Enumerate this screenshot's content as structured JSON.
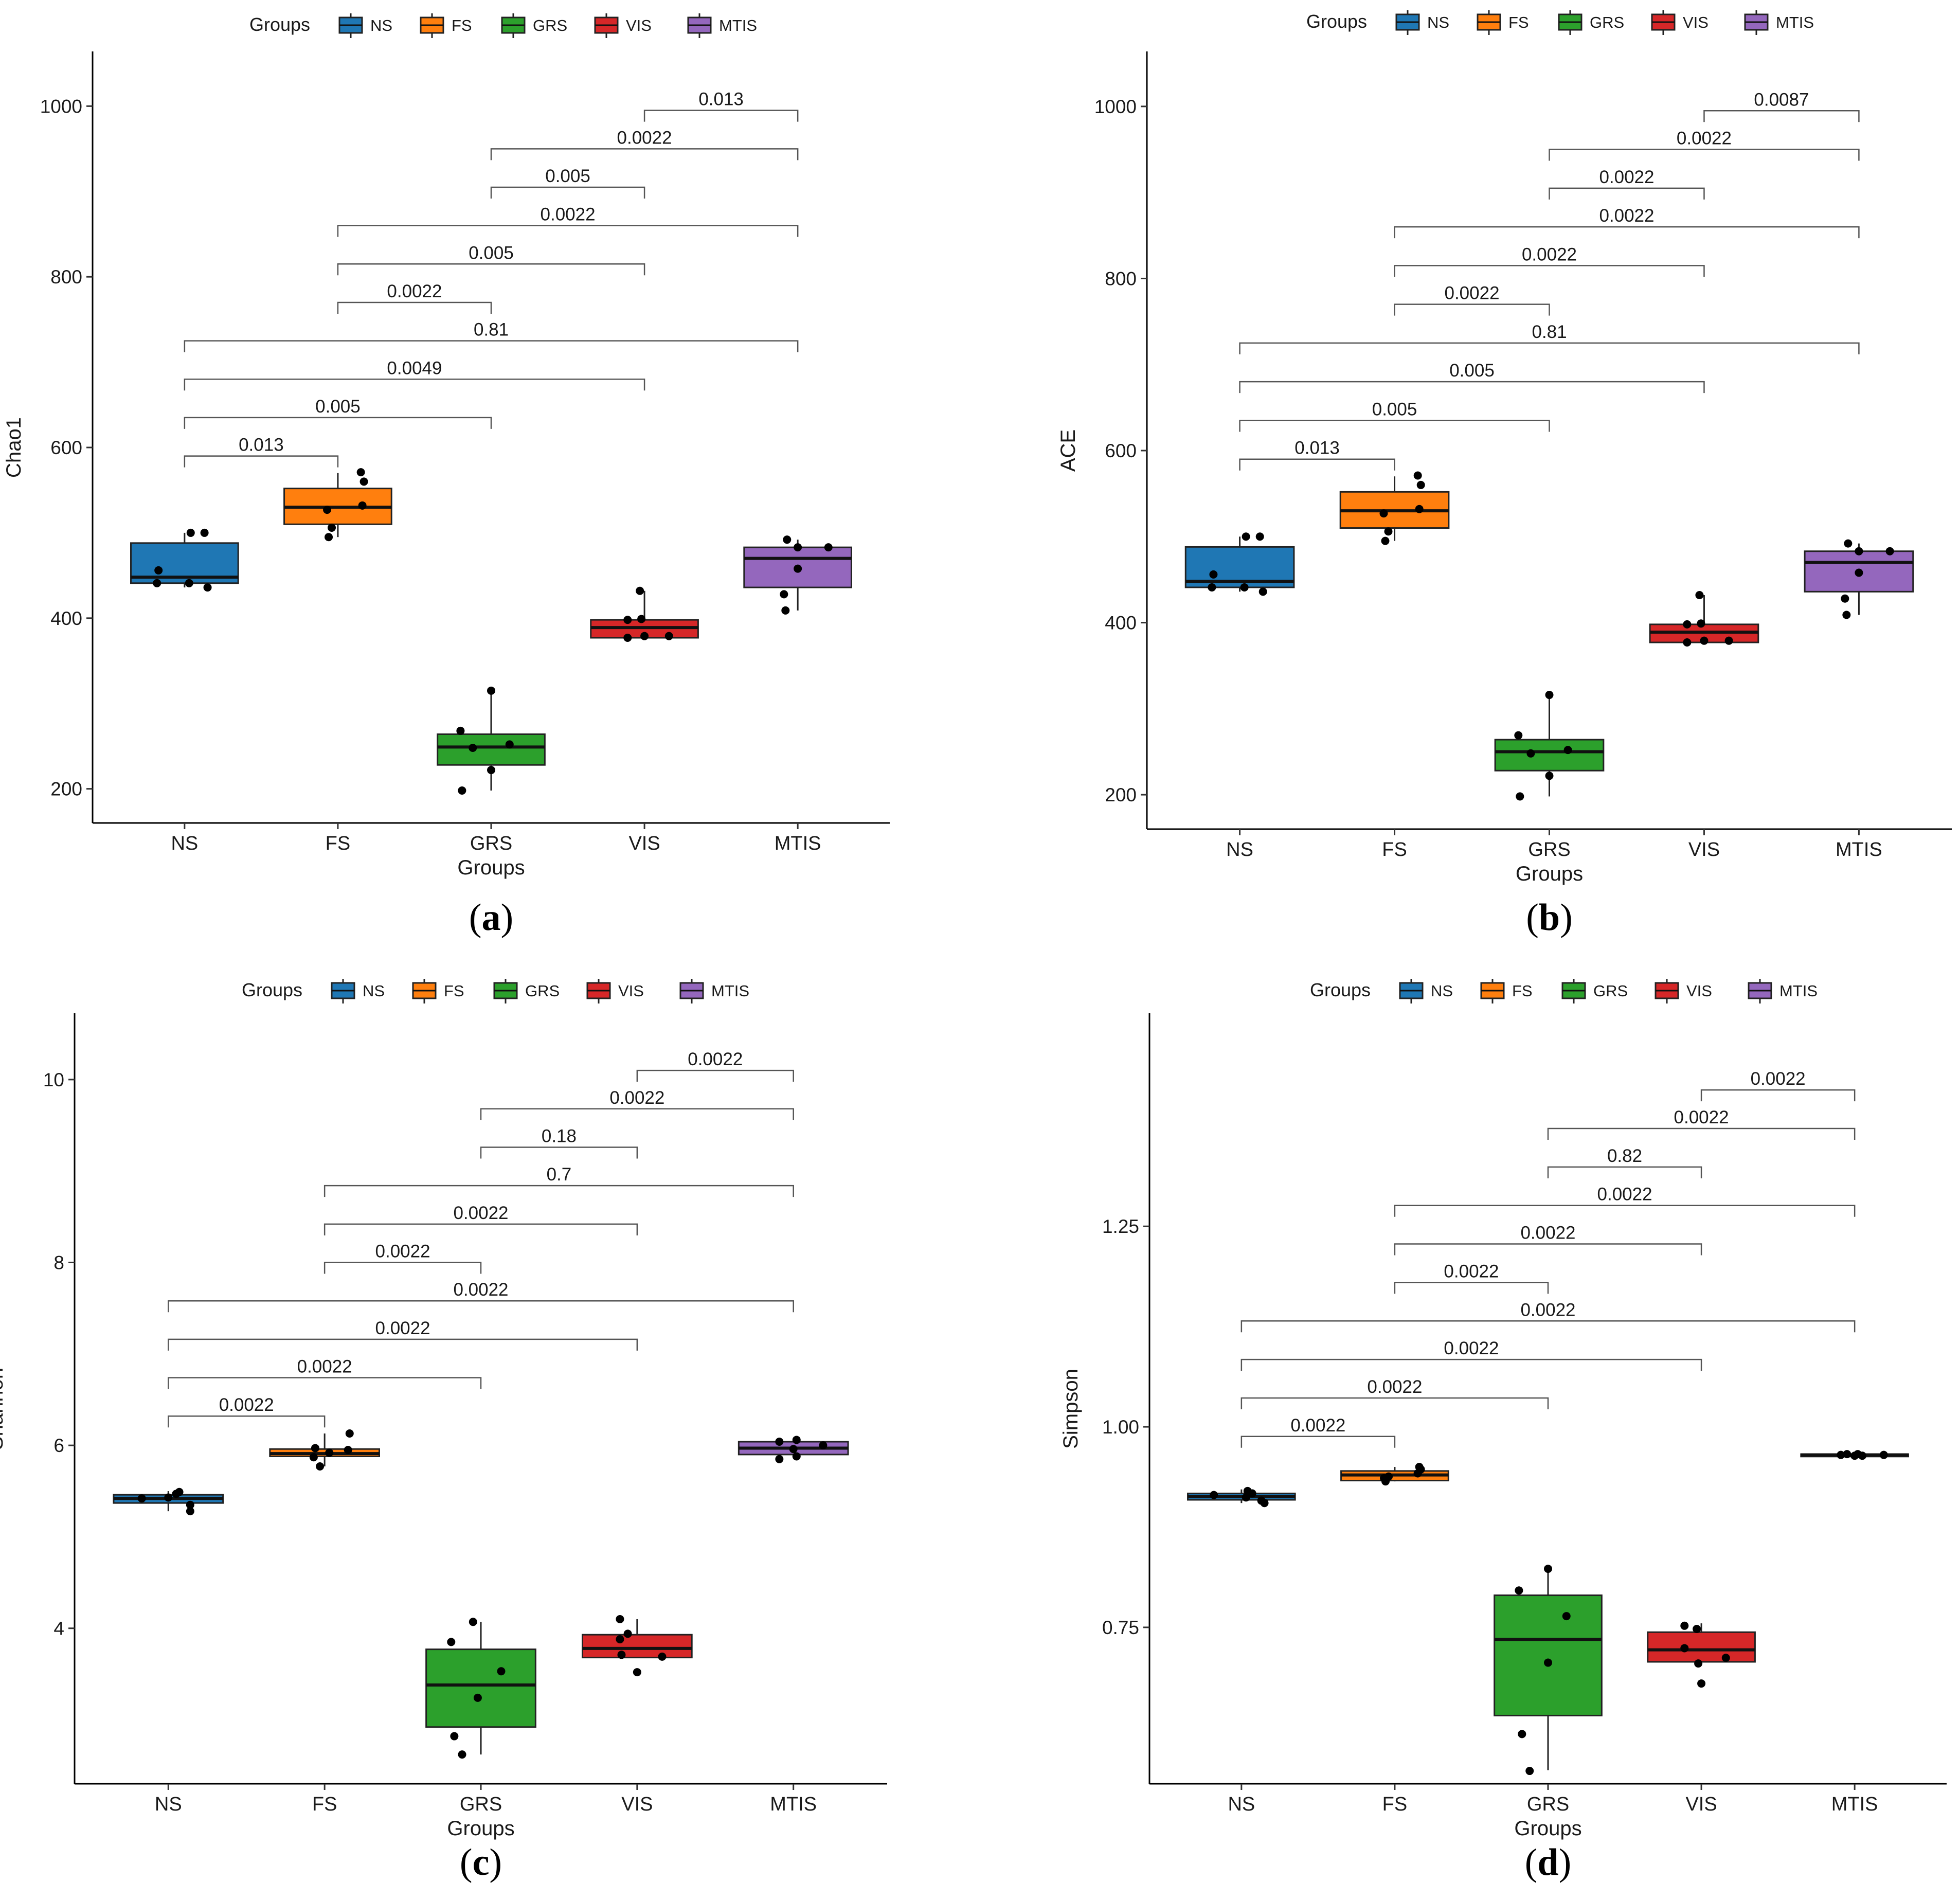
{
  "legend": {
    "title": "Groups",
    "items": [
      {
        "name": "NS",
        "color": "#1f77b4"
      },
      {
        "name": "FS",
        "color": "#ff7f0e"
      },
      {
        "name": "GRS",
        "color": "#2ca02c"
      },
      {
        "name": "VIS",
        "color": "#d62728"
      },
      {
        "name": "MTIS",
        "color": "#9467bd"
      }
    ]
  },
  "chart_data": [
    {
      "id": "a",
      "caption": "a",
      "type": "box",
      "xlabel": "Groups",
      "ylabel": "Chao1",
      "categories": [
        "NS",
        "FS",
        "GRS",
        "VIS",
        "MTIS"
      ],
      "ylim": [
        160,
        1040
      ],
      "yticks": [
        200,
        400,
        600,
        800,
        1000
      ],
      "boxes": [
        {
          "q1": 441,
          "median": 448,
          "q3": 488,
          "whisker_low": 436,
          "whisker_high": 500,
          "points": [
            [
              -0.18,
              441
            ],
            [
              -0.17,
              456
            ],
            [
              0.04,
              500
            ],
            [
              0.13,
              500
            ],
            [
              0.03,
              441
            ],
            [
              0.15,
              436
            ]
          ]
        },
        {
          "q1": 510,
          "median": 530,
          "q3": 552,
          "whisker_low": 495,
          "whisker_high": 570,
          "points": [
            [
              -0.06,
              495
            ],
            [
              -0.04,
              506
            ],
            [
              -0.07,
              527
            ],
            [
              0.16,
              532
            ],
            [
              0.17,
              560
            ],
            [
              0.15,
              571
            ]
          ]
        },
        {
          "q1": 228,
          "median": 249,
          "q3": 264,
          "whisker_low": 198,
          "whisker_high": 315,
          "points": [
            [
              -0.19,
              198
            ],
            [
              -0.2,
              268
            ],
            [
              -0.12,
              248
            ],
            [
              0.0,
              315
            ],
            [
              0.0,
              222
            ],
            [
              0.12,
              252
            ]
          ]
        },
        {
          "q1": 377,
          "median": 389,
          "q3": 398,
          "whisker_low": 377,
          "whisker_high": 432,
          "points": [
            [
              -0.11,
              377
            ],
            [
              -0.11,
              398
            ],
            [
              -0.03,
              432
            ],
            [
              -0.02,
              399
            ],
            [
              0.0,
              379
            ],
            [
              0.16,
              379
            ]
          ]
        },
        {
          "q1": 436,
          "median": 470,
          "q3": 483,
          "whisker_low": 409,
          "whisker_high": 492,
          "points": [
            [
              -0.08,
              409
            ],
            [
              -0.09,
              428
            ],
            [
              -0.07,
              492
            ],
            [
              0.0,
              483
            ],
            [
              0.0,
              458
            ],
            [
              0.2,
              483
            ]
          ]
        }
      ],
      "comparisons": [
        {
          "from": 3,
          "to": 4,
          "y": 995,
          "label": "0.013"
        },
        {
          "from": 2,
          "to": 4,
          "y": 950,
          "label": "0.0022"
        },
        {
          "from": 2,
          "to": 3,
          "y": 905,
          "label": "0.005"
        },
        {
          "from": 1,
          "to": 4,
          "y": 860,
          "label": "0.0022"
        },
        {
          "from": 1,
          "to": 3,
          "y": 815,
          "label": "0.005"
        },
        {
          "from": 1,
          "to": 2,
          "y": 770,
          "label": "0.0022"
        },
        {
          "from": 0,
          "to": 4,
          "y": 725,
          "label": "0.81"
        },
        {
          "from": 0,
          "to": 3,
          "y": 680,
          "label": "0.0049"
        },
        {
          "from": 0,
          "to": 2,
          "y": 635,
          "label": "0.005"
        },
        {
          "from": 0,
          "to": 1,
          "y": 590,
          "label": "0.013"
        }
      ]
    },
    {
      "id": "b",
      "caption": "b",
      "type": "box",
      "xlabel": "Groups",
      "ylabel": "ACE",
      "categories": [
        "NS",
        "FS",
        "GRS",
        "VIS",
        "MTIS"
      ],
      "ylim": [
        160,
        1040
      ],
      "yticks": [
        200,
        400,
        600,
        800,
        1000
      ],
      "boxes": [
        {
          "q1": 441,
          "median": 448,
          "q3": 488,
          "whisker_low": 436,
          "whisker_high": 500,
          "points": [
            [
              -0.18,
              441
            ],
            [
              -0.17,
              456
            ],
            [
              0.04,
              500
            ],
            [
              0.13,
              500
            ],
            [
              0.03,
              441
            ],
            [
              0.15,
              436
            ]
          ]
        },
        {
          "q1": 510,
          "median": 530,
          "q3": 552,
          "whisker_low": 495,
          "whisker_high": 570,
          "points": [
            [
              -0.06,
              495
            ],
            [
              -0.04,
              506
            ],
            [
              -0.07,
              527
            ],
            [
              0.16,
              532
            ],
            [
              0.17,
              560
            ],
            [
              0.15,
              571
            ]
          ]
        },
        {
          "q1": 228,
          "median": 250,
          "q3": 264,
          "whisker_low": 198,
          "whisker_high": 316,
          "points": [
            [
              -0.19,
              198
            ],
            [
              -0.2,
              269
            ],
            [
              -0.12,
              248
            ],
            [
              0.0,
              316
            ],
            [
              0.0,
              222
            ],
            [
              0.12,
              252
            ]
          ]
        },
        {
          "q1": 377,
          "median": 389,
          "q3": 398,
          "whisker_low": 377,
          "whisker_high": 432,
          "points": [
            [
              -0.11,
              377
            ],
            [
              -0.11,
              398
            ],
            [
              -0.03,
              432
            ],
            [
              -0.02,
              399
            ],
            [
              0.0,
              379
            ],
            [
              0.16,
              379
            ]
          ]
        },
        {
          "q1": 436,
          "median": 470,
          "q3": 483,
          "whisker_low": 409,
          "whisker_high": 492,
          "points": [
            [
              -0.08,
              409
            ],
            [
              -0.09,
              428
            ],
            [
              -0.07,
              492
            ],
            [
              0.0,
              483
            ],
            [
              0.0,
              458
            ],
            [
              0.2,
              483
            ]
          ]
        }
      ],
      "comparisons": [
        {
          "from": 3,
          "to": 4,
          "y": 995,
          "label": "0.0087"
        },
        {
          "from": 2,
          "to": 4,
          "y": 950,
          "label": "0.0022"
        },
        {
          "from": 2,
          "to": 3,
          "y": 905,
          "label": "0.0022"
        },
        {
          "from": 1,
          "to": 4,
          "y": 860,
          "label": "0.0022"
        },
        {
          "from": 1,
          "to": 3,
          "y": 815,
          "label": "0.0022"
        },
        {
          "from": 1,
          "to": 2,
          "y": 770,
          "label": "0.0022"
        },
        {
          "from": 0,
          "to": 4,
          "y": 725,
          "label": "0.81"
        },
        {
          "from": 0,
          "to": 3,
          "y": 680,
          "label": "0.005"
        },
        {
          "from": 0,
          "to": 2,
          "y": 635,
          "label": "0.005"
        },
        {
          "from": 0,
          "to": 1,
          "y": 590,
          "label": "0.013"
        }
      ]
    },
    {
      "id": "c",
      "caption": "c",
      "type": "box",
      "xlabel": "Groups",
      "ylabel": "Shannon",
      "categories": [
        "NS",
        "FS",
        "GRS",
        "VIS",
        "MTIS"
      ],
      "ylim": [
        2.3,
        10.5
      ],
      "yticks": [
        4,
        6,
        8,
        10
      ],
      "boxes": [
        {
          "q1": 5.37,
          "median": 5.42,
          "q3": 5.46,
          "whisker_low": 5.28,
          "whisker_high": 5.5,
          "points": [
            [
              -0.17,
              5.42
            ],
            [
              0.05,
              5.47
            ],
            [
              0.07,
              5.49
            ],
            [
              0.14,
              5.35
            ],
            [
              0.14,
              5.28
            ],
            [
              0.0,
              5.43
            ]
          ]
        },
        {
          "q1": 5.88,
          "median": 5.91,
          "q3": 5.96,
          "whisker_low": 5.77,
          "whisker_high": 6.13,
          "points": [
            [
              -0.06,
              5.97
            ],
            [
              -0.07,
              5.87
            ],
            [
              -0.03,
              5.77
            ],
            [
              0.16,
              6.13
            ],
            [
              0.15,
              5.95
            ],
            [
              0.03,
              5.92
            ]
          ]
        },
        {
          "q1": 2.92,
          "median": 3.38,
          "q3": 3.77,
          "whisker_low": 2.62,
          "whisker_high": 4.07,
          "points": [
            [
              -0.19,
              3.85
            ],
            [
              -0.17,
              2.82
            ],
            [
              -0.12,
              2.62
            ],
            [
              -0.02,
              3.24
            ],
            [
              0.13,
              3.53
            ],
            [
              -0.05,
              4.07
            ]
          ]
        },
        {
          "q1": 3.68,
          "median": 3.78,
          "q3": 3.93,
          "whisker_low": 3.68,
          "whisker_high": 4.1,
          "points": [
            [
              -0.11,
              3.88
            ],
            [
              -0.1,
              3.71
            ],
            [
              -0.11,
              4.1
            ],
            [
              0.0,
              3.52
            ],
            [
              0.16,
              3.69
            ],
            [
              -0.06,
              3.94
            ]
          ]
        },
        {
          "q1": 5.9,
          "median": 5.97,
          "q3": 6.04,
          "whisker_low": 5.9,
          "whisker_high": 6.06,
          "points": [
            [
              -0.09,
              5.85
            ],
            [
              -0.09,
              6.04
            ],
            [
              0.02,
              6.06
            ],
            [
              0.02,
              5.88
            ],
            [
              0.19,
              6.0
            ],
            [
              0.0,
              5.96
            ]
          ]
        }
      ],
      "comparisons": [
        {
          "from": 3,
          "to": 4,
          "y": 10.1,
          "label": "0.0022"
        },
        {
          "from": 2,
          "to": 4,
          "y": 9.68,
          "label": "0.0022"
        },
        {
          "from": 2,
          "to": 3,
          "y": 9.26,
          "label": "0.18"
        },
        {
          "from": 1,
          "to": 4,
          "y": 8.84,
          "label": "0.7"
        },
        {
          "from": 1,
          "to": 3,
          "y": 8.42,
          "label": "0.0022"
        },
        {
          "from": 1,
          "to": 2,
          "y": 8.0,
          "label": "0.0022"
        },
        {
          "from": 0,
          "to": 4,
          "y": 7.58,
          "label": "0.0022"
        },
        {
          "from": 0,
          "to": 3,
          "y": 7.16,
          "label": "0.0022"
        },
        {
          "from": 0,
          "to": 2,
          "y": 6.74,
          "label": "0.0022"
        },
        {
          "from": 0,
          "to": 1,
          "y": 6.32,
          "label": "0.0022"
        }
      ]
    },
    {
      "id": "d",
      "caption": "d",
      "type": "box",
      "xlabel": "Groups",
      "ylabel": "Simpson",
      "categories": [
        "NS",
        "FS",
        "GRS",
        "VIS",
        "MTIS"
      ],
      "ylim": [
        0.555,
        1.49
      ],
      "yticks": [
        0.75,
        1.0,
        1.25
      ],
      "ytick_labels": [
        "0.75",
        "1.00",
        "1.25"
      ],
      "boxes": [
        {
          "q1": 0.909,
          "median": 0.913,
          "q3": 0.917,
          "whisker_low": 0.905,
          "whisker_high": 0.922,
          "points": [
            [
              -0.18,
              0.915
            ],
            [
              0.03,
              0.912
            ],
            [
              0.04,
              0.92
            ],
            [
              0.13,
              0.908
            ],
            [
              0.15,
              0.905
            ],
            [
              0.07,
              0.917
            ]
          ]
        },
        {
          "q1": 0.933,
          "median": 0.94,
          "q3": 0.945,
          "whisker_low": 0.932,
          "whisker_high": 0.95,
          "points": [
            [
              -0.06,
              0.932
            ],
            [
              -0.04,
              0.938
            ],
            [
              -0.07,
              0.936
            ],
            [
              0.16,
              0.95
            ],
            [
              0.17,
              0.947
            ],
            [
              0.15,
              0.942
            ]
          ]
        },
        {
          "q1": 0.64,
          "median": 0.735,
          "q3": 0.79,
          "whisker_low": 0.572,
          "whisker_high": 0.823,
          "points": [
            [
              -0.19,
              0.796
            ],
            [
              -0.17,
              0.617
            ],
            [
              -0.12,
              0.571
            ],
            [
              0.0,
              0.823
            ],
            [
              0.0,
              0.706
            ],
            [
              0.12,
              0.764
            ]
          ]
        },
        {
          "q1": 0.707,
          "median": 0.722,
          "q3": 0.744,
          "whisker_low": 0.707,
          "whisker_high": 0.755,
          "points": [
            [
              -0.11,
              0.752
            ],
            [
              -0.11,
              0.724
            ],
            [
              -0.03,
              0.748
            ],
            [
              -0.02,
              0.705
            ],
            [
              0.0,
              0.68
            ],
            [
              0.16,
              0.712
            ]
          ]
        },
        {
          "q1": 0.963,
          "median": 0.965,
          "q3": 0.966,
          "whisker_low": 0.963,
          "whisker_high": 0.967,
          "points": [
            [
              -0.09,
              0.965
            ],
            [
              0.0,
              0.964
            ],
            [
              0.02,
              0.966
            ],
            [
              0.19,
              0.965
            ],
            [
              -0.05,
              0.966
            ],
            [
              0.05,
              0.964
            ]
          ]
        }
      ],
      "comparisons": [
        {
          "from": 3,
          "to": 4,
          "y": 1.42,
          "label": "0.0022"
        },
        {
          "from": 2,
          "to": 4,
          "y": 1.372,
          "label": "0.0022"
        },
        {
          "from": 2,
          "to": 3,
          "y": 1.324,
          "label": "0.82"
        },
        {
          "from": 1,
          "to": 4,
          "y": 1.276,
          "label": "0.0022"
        },
        {
          "from": 1,
          "to": 3,
          "y": 1.228,
          "label": "0.0022"
        },
        {
          "from": 1,
          "to": 2,
          "y": 1.18,
          "label": "0.0022"
        },
        {
          "from": 0,
          "to": 4,
          "y": 1.132,
          "label": "0.0022"
        },
        {
          "from": 0,
          "to": 3,
          "y": 1.084,
          "label": "0.0022"
        },
        {
          "from": 0,
          "to": 2,
          "y": 1.036,
          "label": "0.0022"
        },
        {
          "from": 0,
          "to": 1,
          "y": 0.988,
          "label": "0.0022"
        }
      ]
    }
  ]
}
